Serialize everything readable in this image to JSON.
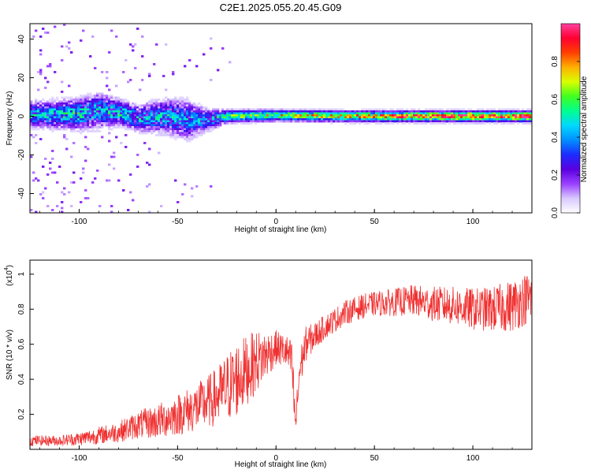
{
  "figure_title": "C2E1.2025.055.20.45.G09",
  "chart_data": [
    {
      "type": "heatmap",
      "xlabel": "Height of straight line (km)",
      "ylabel": "Frequency (Hz)",
      "xlim": [
        -125,
        130
      ],
      "ylim": [
        -50,
        48
      ],
      "xticks": [
        -100,
        -50,
        0,
        50,
        100
      ],
      "yticks": [
        -40,
        -20,
        0,
        20,
        40
      ],
      "colorbar": {
        "label": "Normalized spectral amplitude",
        "range": [
          0,
          1
        ],
        "ticks": [
          "0.0",
          "0.2",
          "0.4",
          "0.6",
          "0.8"
        ],
        "colormap": [
          "#ffffff",
          "#d8c8ff",
          "#9a40ff",
          "#5a00e0",
          "#1c2cff",
          "#0090ff",
          "#00d8ff",
          "#00ff90",
          "#40ff20",
          "#d8ff00",
          "#ffb000",
          "#ff4000",
          "#ff0030",
          "#ff40a0"
        ]
      },
      "grid": false,
      "band": {
        "description_points": [
          {
            "x": -120,
            "center": 1,
            "halfwidth": 6,
            "level": 0.45
          },
          {
            "x": -100,
            "center": 1,
            "halfwidth": 7,
            "level": 0.5
          },
          {
            "x": -90,
            "center": 3,
            "halfwidth": 8,
            "level": 0.45
          },
          {
            "x": -80,
            "center": 2,
            "halfwidth": 6,
            "level": 0.5
          },
          {
            "x": -70,
            "center": -1,
            "halfwidth": 6,
            "level": 0.45
          },
          {
            "x": -55,
            "center": 0,
            "halfwidth": 8,
            "level": 0.45
          },
          {
            "x": -45,
            "center": -2,
            "halfwidth": 9,
            "level": 0.4
          },
          {
            "x": -35,
            "center": -2,
            "halfwidth": 5,
            "level": 0.4
          },
          {
            "x": -25,
            "center": 0,
            "halfwidth": 3,
            "level": 0.55
          },
          {
            "x": 0,
            "center": 0.5,
            "halfwidth": 2.5,
            "level": 0.65
          },
          {
            "x": 40,
            "center": 0,
            "halfwidth": 2.5,
            "level": 0.75
          },
          {
            "x": 80,
            "center": 0,
            "halfwidth": 2.5,
            "level": 0.85
          },
          {
            "x": 130,
            "center": 0,
            "halfwidth": 2.5,
            "level": 0.9
          }
        ]
      }
    },
    {
      "type": "line",
      "xlabel": "Height of straight line (km)",
      "ylabel": "SNR (10 * v/v)",
      "yscale_label": "(x10",
      "yscale_exponent": "4",
      "xlim": [
        -125,
        130
      ],
      "ylim": [
        0,
        1.08
      ],
      "xticks": [
        -100,
        -50,
        0,
        50,
        100
      ],
      "yticks": [
        0.2,
        0.4,
        0.6,
        0.8,
        1.0
      ],
      "series": [
        {
          "color": "#f03030",
          "x": [
            -125,
            -110,
            -100,
            -90,
            -80,
            -75,
            -70,
            -60,
            -50,
            -40,
            -35,
            -30,
            -25,
            -20,
            -15,
            -10,
            -5,
            0,
            5,
            8,
            9,
            10,
            11,
            12,
            15,
            20,
            25,
            30,
            35,
            40,
            45,
            50,
            60,
            70,
            80,
            90,
            100,
            110,
            120,
            125,
            130
          ],
          "values": [
            0.05,
            0.05,
            0.06,
            0.08,
            0.1,
            0.12,
            0.14,
            0.16,
            0.2,
            0.24,
            0.27,
            0.3,
            0.35,
            0.4,
            0.45,
            0.5,
            0.54,
            0.58,
            0.56,
            0.5,
            0.3,
            0.14,
            0.3,
            0.45,
            0.6,
            0.65,
            0.7,
            0.74,
            0.78,
            0.8,
            0.82,
            0.83,
            0.84,
            0.85,
            0.83,
            0.82,
            0.8,
            0.8,
            0.82,
            0.85,
            0.87
          ],
          "noise": [
            0.03,
            0.03,
            0.04,
            0.05,
            0.06,
            0.07,
            0.08,
            0.1,
            0.12,
            0.14,
            0.15,
            0.17,
            0.2,
            0.22,
            0.2,
            0.18,
            0.14,
            0.1,
            0.1,
            0.12,
            0.15,
            0.05,
            0.12,
            0.12,
            0.1,
            0.08,
            0.07,
            0.07,
            0.07,
            0.07,
            0.07,
            0.07,
            0.08,
            0.09,
            0.1,
            0.11,
            0.12,
            0.13,
            0.15,
            0.15,
            0.15
          ]
        }
      ]
    }
  ]
}
